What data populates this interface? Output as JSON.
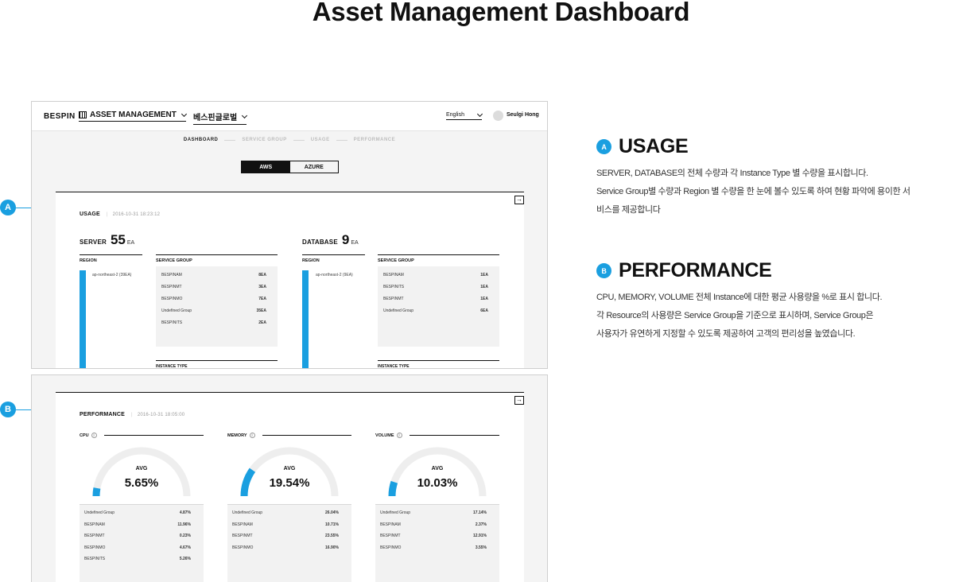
{
  "page_title": "Asset Management Dashboard",
  "callouts": {
    "a": "A",
    "b": "B"
  },
  "app": {
    "brand": "BESPIN",
    "menu_label": "ASSET MANAGEMENT",
    "org_label": "베스핀글로벌",
    "language": "English",
    "user_name": "Seulgi Hong"
  },
  "subnav": [
    "DASHBOARD",
    "SERVICE GROUP",
    "USAGE",
    "PERFORMANCE"
  ],
  "cloud_toggle": {
    "aws": "AWS",
    "azure": "AZURE"
  },
  "usage": {
    "title": "USAGE",
    "timestamp": "2016-10-31 18:23:12",
    "server": {
      "label": "SERVER",
      "count": "55",
      "unit": "EA",
      "region_header": "REGION",
      "region": "ap-northeast-2 (39EA)",
      "sg_header": "SERVICE GROUP",
      "groups": [
        {
          "name": "BESPINAM",
          "value": "8EA"
        },
        {
          "name": "BESPINMT",
          "value": "3EA"
        },
        {
          "name": "BESPINMO",
          "value": "7EA"
        },
        {
          "name": "Undefined Group",
          "value": "35EA"
        },
        {
          "name": "BESPINITS",
          "value": "2EA"
        }
      ],
      "instance_header": "INSTANCE TYPE"
    },
    "database": {
      "label": "DATABASE",
      "count": "9",
      "unit": "EA",
      "region_header": "REGION",
      "region": "ap-northeast-2 (9EA)",
      "sg_header": "SERVICE GROUP",
      "groups": [
        {
          "name": "BESPINAM",
          "value": "1EA"
        },
        {
          "name": "BESPINITS",
          "value": "1EA"
        },
        {
          "name": "BESPINMT",
          "value": "1EA"
        },
        {
          "name": "Undefined Group",
          "value": "6EA"
        }
      ],
      "instance_header": "INSTANCE TYPE"
    }
  },
  "performance": {
    "title": "PERFORMANCE",
    "timestamp": "2016-10-31 18:05:00",
    "avg_label": "AVG",
    "metrics": [
      {
        "name": "CPU",
        "avg": "5.65%",
        "level": 5.65,
        "rows": [
          {
            "name": "Undefined Group",
            "value": "4.87%"
          },
          {
            "name": "BESPINAM",
            "value": "11.96%"
          },
          {
            "name": "BESPINMT",
            "value": "0.23%"
          },
          {
            "name": "BESPINMO",
            "value": "4.67%"
          },
          {
            "name": "BESPINITS",
            "value": "5.26%"
          }
        ]
      },
      {
        "name": "MEMORY",
        "avg": "19.54%",
        "level": 19.54,
        "rows": [
          {
            "name": "Undefined Group",
            "value": "26.04%"
          },
          {
            "name": "BESPINAM",
            "value": "10.71%"
          },
          {
            "name": "BESPINMT",
            "value": "23.55%"
          },
          {
            "name": "BESPINMO",
            "value": "16.90%"
          }
        ]
      },
      {
        "name": "VOLUME",
        "avg": "10.03%",
        "level": 10.03,
        "rows": [
          {
            "name": "Undefined Group",
            "value": "17.14%"
          },
          {
            "name": "BESPINAM",
            "value": "2.37%"
          },
          {
            "name": "BESPINMT",
            "value": "12.91%"
          },
          {
            "name": "BESPINMO",
            "value": "3.55%"
          }
        ]
      }
    ]
  },
  "descriptions": [
    {
      "badge": "A",
      "title": "USAGE",
      "lines": [
        "SERVER, DATABASE의 전체 수량과 각 Instance Type 별 수량을 표시합니다.",
        "Service Group별 수량과 Region 별 수량을 한 눈에 볼수 있도록 하여 현황 파악에 용이한 서",
        "비스를 제공합니다"
      ]
    },
    {
      "badge": "B",
      "title": "PERFORMANCE",
      "lines": [
        "CPU, MEMORY, VOLUME 전체 Instance에 대한 평균 사용량을 %로 표시 합니다.",
        "각 Resource의 사용량은 Service Group을 기준으로 표시하며, Service Group은",
        "사용자가 유연하게 지정할 수 있도록 제공하여 고객의 편리성을 높였습니다."
      ]
    }
  ],
  "colors": {
    "accent": "#1a9fe0",
    "gauge_track": "#eeeeee"
  }
}
